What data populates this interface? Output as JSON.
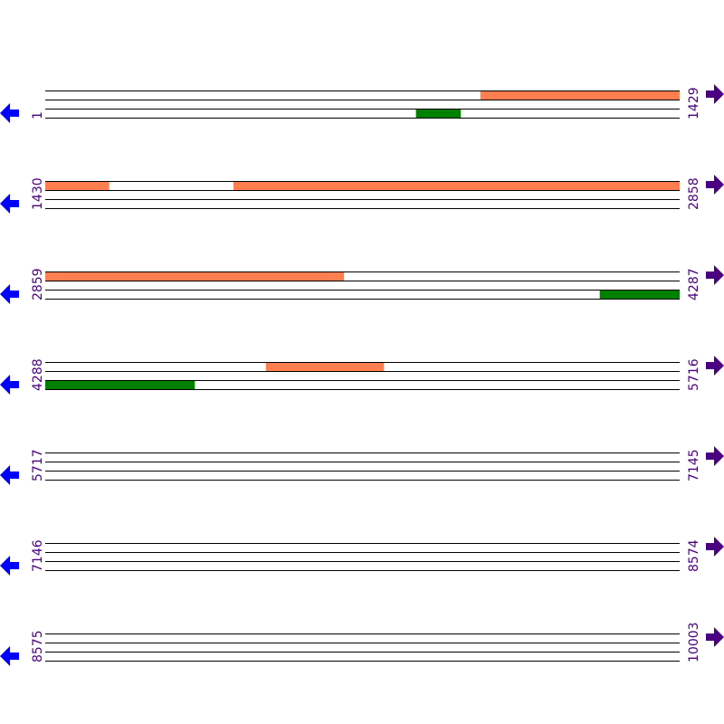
{
  "colors": {
    "forward_feature": "#FF7F50",
    "reverse_feature": "#008000",
    "left_arrow": "#0000FF",
    "right_arrow": "#4B0082",
    "label": "#4B0082",
    "line": "#000000"
  },
  "icons": {
    "left": "arrow-left-icon",
    "right": "arrow-right-icon"
  },
  "rows": [
    {
      "start": "1",
      "end": "1429",
      "from": 1,
      "to": 1429,
      "features": [
        {
          "strand": "forward",
          "from": 981,
          "to": 1429
        },
        {
          "strand": "reverse",
          "from": 836,
          "to": 936
        }
      ]
    },
    {
      "start": "1430",
      "end": "2858",
      "from": 1430,
      "to": 2858,
      "features": [
        {
          "strand": "forward",
          "from": 1430,
          "to": 1573
        },
        {
          "strand": "forward",
          "from": 1854,
          "to": 2858
        }
      ]
    },
    {
      "start": "2859",
      "end": "4287",
      "from": 2859,
      "to": 4287,
      "features": [
        {
          "strand": "forward",
          "from": 2859,
          "to": 3531
        },
        {
          "strand": "reverse",
          "from": 4108,
          "to": 4287
        }
      ]
    },
    {
      "start": "4288",
      "end": "5716",
      "from": 4288,
      "to": 5716,
      "features": [
        {
          "strand": "forward",
          "from": 4785,
          "to": 5050
        },
        {
          "strand": "reverse",
          "from": 4288,
          "to": 4624
        }
      ]
    },
    {
      "start": "5717",
      "end": "7145",
      "from": 5717,
      "to": 7145,
      "features": []
    },
    {
      "start": "7146",
      "end": "8574",
      "from": 7146,
      "to": 8574,
      "features": []
    },
    {
      "start": "8575",
      "end": "10003",
      "from": 8575,
      "to": 10003,
      "features": []
    }
  ]
}
